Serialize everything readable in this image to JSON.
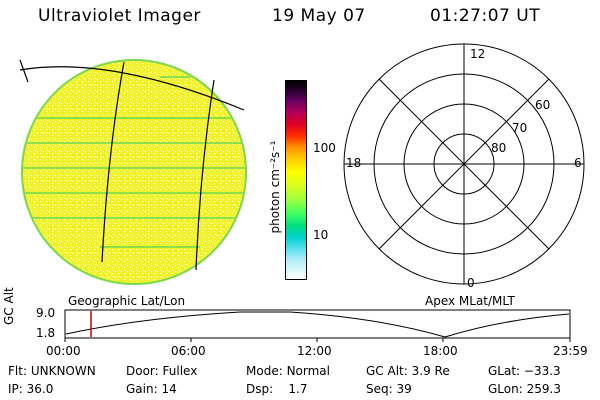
{
  "header": {
    "instrument": "Ultraviolet Imager",
    "date": "19 May 07",
    "time": "01:27:07 UT"
  },
  "colorbar": {
    "label": "photon cm⁻²s⁻¹",
    "ticks": [
      "100",
      "10"
    ]
  },
  "polar": {
    "mlt_labels": {
      "top": "12",
      "left": "18",
      "right": "6",
      "bottom": "0"
    },
    "lat_labels": [
      "60",
      "70",
      "80"
    ]
  },
  "projections": {
    "left": "Geographic Lat/Lon",
    "right": "Apex MLat/MLT"
  },
  "altitude_plot": {
    "ylabel": "GC Alt",
    "yticks": [
      "9.0",
      "1.8"
    ],
    "xticks": [
      "00:00",
      "06:00",
      "12:00",
      "18:00",
      "23:59"
    ]
  },
  "info": {
    "row1": [
      {
        "label": "Flt:",
        "value": "UNKNOWN"
      },
      {
        "label": "Door:",
        "value": "Fullex"
      },
      {
        "label": "Mode:",
        "value": "Normal"
      },
      {
        "label": "GC Alt:",
        "value": "3.9 Re"
      },
      {
        "label": "GLat:",
        "value": "−33.3"
      }
    ],
    "row2": [
      {
        "label": "IP:",
        "value": "36.0"
      },
      {
        "label": "Gain:",
        "value": "14"
      },
      {
        "label": "Dsp:",
        "value": "1.7"
      },
      {
        "label": "Seq:",
        "value": "39"
      },
      {
        "label": "GLon:",
        "value": "259.3"
      }
    ]
  },
  "colors": {
    "disk_fill": "#f4f430",
    "disk_edge": "#8ee04a",
    "marker": "#cc0000"
  }
}
